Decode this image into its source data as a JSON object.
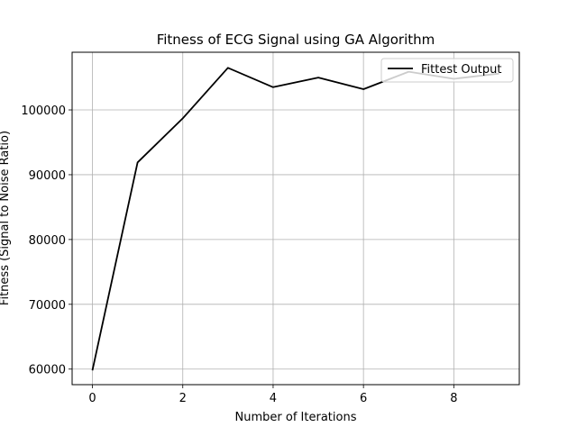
{
  "chart_data": {
    "type": "line",
    "title": "Fitness of ECG Signal using GA Algorithm",
    "xlabel": "Number of Iterations",
    "ylabel": "Fitness (Signal to Noise Ratio)",
    "xlim": [
      -0.45,
      9.45
    ],
    "ylim": [
      57600,
      108900
    ],
    "xticks": [
      0,
      2,
      4,
      6,
      8
    ],
    "yticks": [
      60000,
      70000,
      80000,
      90000,
      100000
    ],
    "grid": true,
    "legend_position": "top-right",
    "series": [
      {
        "name": "Fittest Output",
        "color": "#000000",
        "x": [
          0,
          1,
          2,
          3,
          4,
          5,
          6,
          7,
          8,
          9
        ],
        "y": [
          59800,
          91900,
          98700,
          106500,
          103500,
          105000,
          103200,
          105900,
          104800,
          105600
        ]
      }
    ]
  }
}
